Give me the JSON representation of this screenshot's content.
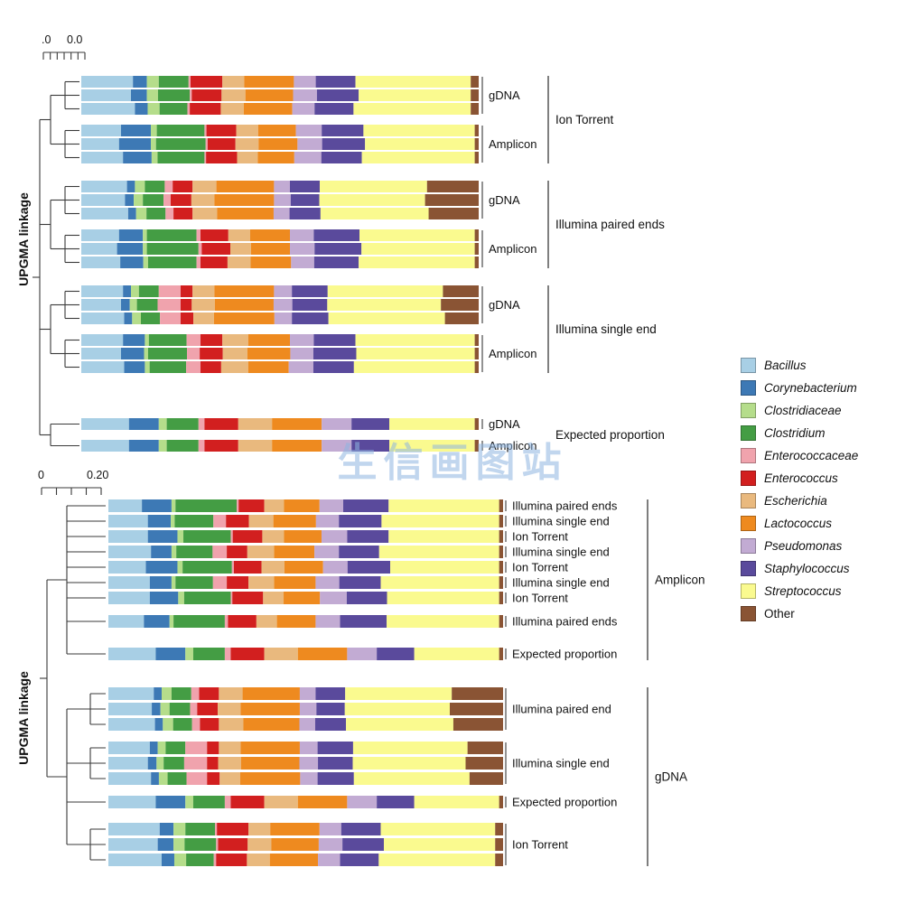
{
  "watermark": {
    "text": "生信画图站",
    "color": "#8eb4e0"
  },
  "taxa": [
    "Bacillus",
    "Corynebacterium",
    "Clostridiaceae",
    "Clostridium",
    "Enterococcaceae",
    "Enterococcus",
    "Escherichia",
    "Lactococcus",
    "Pseudomonas",
    "Staphylococcus",
    "Streptococcus",
    "Other"
  ],
  "taxa_colors": {
    "Bacillus": "#a8cfe5",
    "Corynebacterium": "#3d79b5",
    "Clostridiaceae": "#b5dd8b",
    "Clostridium": "#449d44",
    "Enterococcaceae": "#f0a3ad",
    "Enterococcus": "#d21f1f",
    "Escherichia": "#e9b97e",
    "Lactococcus": "#ee8a1f",
    "Pseudomonas": "#c2abd3",
    "Staphylococcus": "#5a4a9c",
    "Streptococcus": "#fafa8f",
    "Other": "#8a5434"
  },
  "legend": {
    "items": [
      {
        "label": "Bacillus",
        "color": "#a8cfe5",
        "italic": true
      },
      {
        "label": "Corynebacterium",
        "color": "#3d79b5",
        "italic": true
      },
      {
        "label": "Clostridiaceae",
        "color": "#b5dd8b",
        "italic": true
      },
      {
        "label": "Clostridium",
        "color": "#449d44",
        "italic": true
      },
      {
        "label": "Enterococcaceae",
        "color": "#f0a3ad",
        "italic": true
      },
      {
        "label": "Enterococcus",
        "color": "#d21f1f",
        "italic": true
      },
      {
        "label": "Escherichia",
        "color": "#e9b97e",
        "italic": true
      },
      {
        "label": "Lactococcus",
        "color": "#ee8a1f",
        "italic": true
      },
      {
        "label": "Pseudomonas",
        "color": "#c2abd3",
        "italic": true
      },
      {
        "label": "Staphylococcus",
        "color": "#5a4a9c",
        "italic": true
      },
      {
        "label": "Streptococcus",
        "color": "#fafa8f",
        "italic": true
      },
      {
        "label": "Other",
        "color": "#8a5434",
        "italic": false
      }
    ]
  },
  "chart_data": [
    {
      "type": "bar",
      "orientation": "horizontal-stacked",
      "axis_label": "UPGMA linkage",
      "scale_labels": [
        ".0",
        "0.0"
      ],
      "value_range": [
        0,
        1
      ],
      "groups": [
        {
          "label": "Ion Torrent",
          "items": [
            {
              "label": "gDNA",
              "rows": [
                [
                  0.13,
                  0.035,
                  0.03,
                  0.075,
                  0.005,
                  0.08,
                  0.055,
                  0.125,
                  0.055,
                  0.1,
                  0.29,
                  0.02
                ],
                [
                  0.125,
                  0.04,
                  0.028,
                  0.08,
                  0.005,
                  0.075,
                  0.06,
                  0.12,
                  0.06,
                  0.105,
                  0.282,
                  0.02
                ],
                [
                  0.135,
                  0.032,
                  0.03,
                  0.07,
                  0.006,
                  0.078,
                  0.058,
                  0.122,
                  0.056,
                  0.098,
                  0.295,
                  0.02
                ]
              ]
            },
            {
              "label": "Amplicon",
              "rows": [
                [
                  0.1,
                  0.075,
                  0.015,
                  0.12,
                  0.005,
                  0.075,
                  0.055,
                  0.095,
                  0.065,
                  0.105,
                  0.28,
                  0.01
                ],
                [
                  0.095,
                  0.08,
                  0.013,
                  0.125,
                  0.005,
                  0.07,
                  0.058,
                  0.098,
                  0.062,
                  0.108,
                  0.276,
                  0.01
                ],
                [
                  0.105,
                  0.072,
                  0.015,
                  0.118,
                  0.004,
                  0.078,
                  0.052,
                  0.092,
                  0.068,
                  0.102,
                  0.284,
                  0.01
                ]
              ]
            }
          ]
        },
        {
          "label": "Illumina paired ends",
          "items": [
            {
              "label": "gDNA",
              "rows": [
                [
                  0.115,
                  0.02,
                  0.025,
                  0.05,
                  0.02,
                  0.05,
                  0.06,
                  0.145,
                  0.04,
                  0.075,
                  0.27,
                  0.13
                ],
                [
                  0.11,
                  0.022,
                  0.023,
                  0.052,
                  0.018,
                  0.052,
                  0.058,
                  0.15,
                  0.042,
                  0.072,
                  0.266,
                  0.135
                ],
                [
                  0.118,
                  0.02,
                  0.026,
                  0.048,
                  0.02,
                  0.048,
                  0.062,
                  0.142,
                  0.04,
                  0.078,
                  0.272,
                  0.126
                ]
              ]
            },
            {
              "label": "Amplicon",
              "rows": [
                [
                  0.095,
                  0.06,
                  0.01,
                  0.125,
                  0.01,
                  0.07,
                  0.055,
                  0.1,
                  0.06,
                  0.115,
                  0.29,
                  0.01
                ],
                [
                  0.09,
                  0.065,
                  0.01,
                  0.13,
                  0.008,
                  0.072,
                  0.052,
                  0.098,
                  0.062,
                  0.118,
                  0.285,
                  0.01
                ],
                [
                  0.098,
                  0.058,
                  0.012,
                  0.122,
                  0.01,
                  0.068,
                  0.058,
                  0.102,
                  0.058,
                  0.112,
                  0.292,
                  0.01
                ]
              ]
            }
          ]
        },
        {
          "label": "Illumina single end",
          "items": [
            {
              "label": "gDNA",
              "rows": [
                [
                  0.105,
                  0.02,
                  0.02,
                  0.05,
                  0.055,
                  0.03,
                  0.055,
                  0.15,
                  0.045,
                  0.09,
                  0.29,
                  0.09
                ],
                [
                  0.1,
                  0.022,
                  0.018,
                  0.052,
                  0.058,
                  0.028,
                  0.058,
                  0.148,
                  0.047,
                  0.088,
                  0.286,
                  0.095
                ],
                [
                  0.108,
                  0.02,
                  0.022,
                  0.048,
                  0.052,
                  0.032,
                  0.052,
                  0.152,
                  0.044,
                  0.092,
                  0.293,
                  0.085
                ]
              ]
            },
            {
              "label": "Amplicon",
              "rows": [
                [
                  0.105,
                  0.055,
                  0.01,
                  0.095,
                  0.035,
                  0.055,
                  0.065,
                  0.105,
                  0.06,
                  0.105,
                  0.3,
                  0.01
                ],
                [
                  0.1,
                  0.058,
                  0.01,
                  0.098,
                  0.032,
                  0.058,
                  0.062,
                  0.108,
                  0.058,
                  0.108,
                  0.298,
                  0.01
                ],
                [
                  0.108,
                  0.052,
                  0.012,
                  0.092,
                  0.036,
                  0.052,
                  0.068,
                  0.102,
                  0.062,
                  0.102,
                  0.304,
                  0.01
                ]
              ]
            }
          ]
        },
        {
          "label": "Expected proportion",
          "items": [
            {
              "label": "gDNA",
              "rows": [
                [
                  0.12,
                  0.075,
                  0.02,
                  0.08,
                  0.015,
                  0.085,
                  0.085,
                  0.125,
                  0.075,
                  0.095,
                  0.215,
                  0.01
                ]
              ]
            },
            {
              "label": "Amplicon",
              "rows": [
                [
                  0.12,
                  0.075,
                  0.02,
                  0.08,
                  0.015,
                  0.085,
                  0.085,
                  0.125,
                  0.075,
                  0.095,
                  0.215,
                  0.01
                ]
              ]
            }
          ]
        }
      ]
    },
    {
      "type": "bar",
      "orientation": "horizontal-stacked",
      "axis_label": "UPGMA linkage",
      "scale_labels": [
        "0",
        "0.20"
      ],
      "value_range": [
        0,
        1
      ],
      "groups": [
        {
          "label": "Amplicon",
          "items": [
            {
              "label": "Illumina paired ends",
              "rows": [
                [
                  0.085,
                  0.075,
                  0.01,
                  0.155,
                  0.005,
                  0.065,
                  0.05,
                  0.09,
                  0.06,
                  0.115,
                  0.28,
                  0.01
                ]
              ]
            },
            {
              "label": "Illumina single end",
              "rows": [
                [
                  0.1,
                  0.058,
                  0.01,
                  0.098,
                  0.032,
                  0.058,
                  0.062,
                  0.108,
                  0.058,
                  0.108,
                  0.298,
                  0.01
                ]
              ]
            },
            {
              "label": "Ion Torrent",
              "rows": [
                [
                  0.1,
                  0.075,
                  0.015,
                  0.12,
                  0.005,
                  0.075,
                  0.055,
                  0.095,
                  0.065,
                  0.105,
                  0.28,
                  0.01
                ]
              ]
            },
            {
              "label": "Illumina single end",
              "rows": [
                [
                  0.108,
                  0.052,
                  0.012,
                  0.092,
                  0.036,
                  0.052,
                  0.068,
                  0.102,
                  0.062,
                  0.102,
                  0.304,
                  0.01
                ]
              ]
            },
            {
              "label": "Ion Torrent",
              "rows": [
                [
                  0.095,
                  0.08,
                  0.013,
                  0.125,
                  0.005,
                  0.07,
                  0.058,
                  0.098,
                  0.062,
                  0.108,
                  0.276,
                  0.01
                ]
              ]
            },
            {
              "label": "Illumina single end",
              "rows": [
                [
                  0.105,
                  0.055,
                  0.01,
                  0.095,
                  0.035,
                  0.055,
                  0.065,
                  0.105,
                  0.06,
                  0.105,
                  0.3,
                  0.01
                ]
              ]
            },
            {
              "label": "Ion Torrent",
              "rows": [
                [
                  0.105,
                  0.072,
                  0.015,
                  0.118,
                  0.004,
                  0.078,
                  0.052,
                  0.092,
                  0.068,
                  0.102,
                  0.284,
                  0.01
                ]
              ]
            },
            {
              "label": "Illumina paired ends",
              "rows": [
                [
                  0.09,
                  0.065,
                  0.01,
                  0.13,
                  0.008,
                  0.072,
                  0.052,
                  0.098,
                  0.062,
                  0.118,
                  0.285,
                  0.01
                ]
              ]
            },
            {
              "label": "Expected proportion",
              "rows": [
                [
                  0.12,
                  0.075,
                  0.02,
                  0.08,
                  0.015,
                  0.085,
                  0.085,
                  0.125,
                  0.075,
                  0.095,
                  0.215,
                  0.01
                ]
              ]
            }
          ]
        },
        {
          "label": "gDNA",
          "items": [
            {
              "label": "Illumina paired end",
              "rows": [
                [
                  0.115,
                  0.02,
                  0.025,
                  0.05,
                  0.02,
                  0.05,
                  0.06,
                  0.145,
                  0.04,
                  0.075,
                  0.27,
                  0.13
                ],
                [
                  0.11,
                  0.022,
                  0.023,
                  0.052,
                  0.018,
                  0.052,
                  0.058,
                  0.15,
                  0.042,
                  0.072,
                  0.266,
                  0.135
                ],
                [
                  0.118,
                  0.02,
                  0.026,
                  0.048,
                  0.02,
                  0.048,
                  0.062,
                  0.142,
                  0.04,
                  0.078,
                  0.272,
                  0.126
                ]
              ]
            },
            {
              "label": "Illumina single end",
              "rows": [
                [
                  0.105,
                  0.02,
                  0.02,
                  0.05,
                  0.055,
                  0.03,
                  0.055,
                  0.15,
                  0.045,
                  0.09,
                  0.29,
                  0.09
                ],
                [
                  0.1,
                  0.022,
                  0.018,
                  0.052,
                  0.058,
                  0.028,
                  0.058,
                  0.148,
                  0.047,
                  0.088,
                  0.286,
                  0.095
                ],
                [
                  0.108,
                  0.02,
                  0.022,
                  0.048,
                  0.052,
                  0.032,
                  0.052,
                  0.152,
                  0.044,
                  0.092,
                  0.293,
                  0.085
                ]
              ]
            },
            {
              "label": "Expected proportion",
              "rows": [
                [
                  0.12,
                  0.075,
                  0.02,
                  0.08,
                  0.015,
                  0.085,
                  0.085,
                  0.125,
                  0.075,
                  0.095,
                  0.215,
                  0.01
                ]
              ]
            },
            {
              "label": "Ion Torrent",
              "rows": [
                [
                  0.13,
                  0.035,
                  0.03,
                  0.075,
                  0.005,
                  0.08,
                  0.055,
                  0.125,
                  0.055,
                  0.1,
                  0.29,
                  0.02
                ],
                [
                  0.125,
                  0.04,
                  0.028,
                  0.08,
                  0.005,
                  0.075,
                  0.06,
                  0.12,
                  0.06,
                  0.105,
                  0.282,
                  0.02
                ],
                [
                  0.135,
                  0.032,
                  0.03,
                  0.07,
                  0.006,
                  0.078,
                  0.058,
                  0.122,
                  0.056,
                  0.098,
                  0.295,
                  0.02
                ]
              ]
            }
          ]
        }
      ]
    }
  ]
}
